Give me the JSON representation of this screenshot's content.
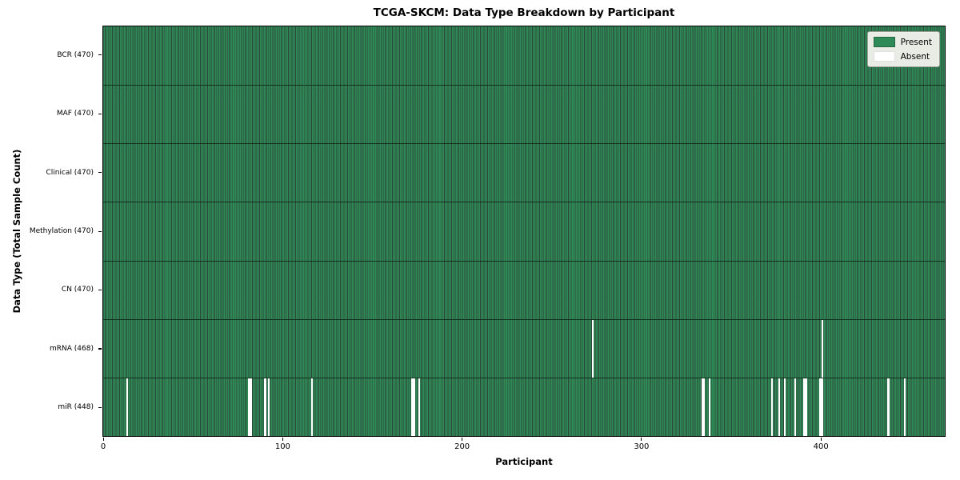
{
  "figure": {
    "title": "TCGA-SKCM: Data Type Breakdown by Participant",
    "xlabel": "Participant",
    "ylabel": "Data Type (Total Sample Count)"
  },
  "legend": {
    "items": [
      {
        "label": "Present",
        "color": "#2e8b57"
      },
      {
        "label": "Absent",
        "color": "#ffffff"
      }
    ]
  },
  "colors": {
    "present_fill": "#2e8b57",
    "bar_edge_dark": "#0a2616",
    "absent_fill": "#ffffff",
    "row_separator": "#0a2013",
    "plot_border": "#000000",
    "legend_bg": "#e9ece5",
    "legend_border": "#9aa096"
  },
  "chart_data": {
    "type": "heatmap",
    "title": "TCGA-SKCM: Data Type Breakdown by Participant",
    "xlabel": "Participant",
    "ylabel": "Data Type (Total Sample Count)",
    "legend": [
      "Present",
      "Absent"
    ],
    "legend_position": "upper right",
    "grid": false,
    "n_participants": 470,
    "x_range": [
      -0.5,
      469.5
    ],
    "x_ticks": [
      0,
      100,
      200,
      300,
      400
    ],
    "rows": [
      {
        "label": "BCR (470)",
        "data_type": "BCR",
        "present_count": 470,
        "total": 470,
        "absent_participants": []
      },
      {
        "label": "MAF (470)",
        "data_type": "MAF",
        "present_count": 470,
        "total": 470,
        "absent_participants": []
      },
      {
        "label": "Clinical (470)",
        "data_type": "Clinical",
        "present_count": 470,
        "total": 470,
        "absent_participants": []
      },
      {
        "label": "Methylation (470)",
        "data_type": "Methylation",
        "present_count": 470,
        "total": 470,
        "absent_participants": []
      },
      {
        "label": "CN (470)",
        "data_type": "CN",
        "present_count": 470,
        "total": 470,
        "absent_participants": []
      },
      {
        "label": "mRNA (468)",
        "data_type": "mRNA",
        "present_count": 468,
        "total": 470,
        "absent_participants": [
          273,
          401
        ]
      },
      {
        "label": "miR (448)",
        "data_type": "miR",
        "present_count": 448,
        "total": 470,
        "absent_participants": [
          13,
          81,
          82,
          90,
          92,
          116,
          172,
          173,
          176,
          334,
          335,
          338,
          373,
          377,
          380,
          386,
          391,
          392,
          400,
          401,
          438,
          447
        ]
      }
    ]
  }
}
